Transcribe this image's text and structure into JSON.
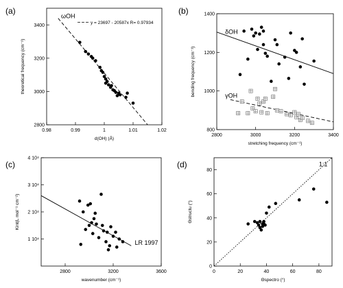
{
  "chart_data": [
    {
      "id": "a",
      "type": "scatter",
      "panel_label": "(a)",
      "xlabel": "d(OH) (Å)",
      "ylabel": "theoretical frequency (cm⁻¹)",
      "xlim": [
        0.98,
        1.02
      ],
      "ylim": [
        2800,
        3500
      ],
      "xticks": [
        0.98,
        0.99,
        1,
        1.01,
        1.02
      ],
      "xtick_labels": [
        "0.98",
        "0.99",
        "1",
        "1.01",
        "1.02"
      ],
      "yticks": [
        2800,
        3000,
        3200,
        3400
      ],
      "ytick_labels": [
        "2800",
        "3000",
        "3200",
        "3400"
      ],
      "annotation": "ωOH",
      "legend": "y = 23697 - 20587x   R= 0.97934",
      "fit_line": {
        "intercept": 23697,
        "slope": -20587,
        "style": "dashed",
        "x_range": [
          0.984,
          1.015
        ]
      },
      "points": [
        [
          0.9915,
          3295
        ],
        [
          0.9935,
          3240
        ],
        [
          0.9945,
          3225
        ],
        [
          0.9955,
          3210
        ],
        [
          0.996,
          3200
        ],
        [
          0.997,
          3185
        ],
        [
          0.9985,
          3145
        ],
        [
          0.999,
          3125
        ],
        [
          0.9995,
          3115
        ],
        [
          1.0,
          3090
        ],
        [
          1.0005,
          3075
        ],
        [
          1.001,
          3060
        ],
        [
          1.0015,
          3040
        ],
        [
          1.0022,
          3025
        ],
        [
          1.003,
          3010
        ],
        [
          1.0035,
          3005
        ],
        [
          1.004,
          2995
        ],
        [
          1.005,
          2990
        ],
        [
          1.0055,
          2980
        ],
        [
          1.0045,
          2975
        ],
        [
          1.0075,
          2965
        ],
        [
          1.008,
          2990
        ],
        [
          1.0025,
          3035
        ],
        [
          1.0005,
          3050
        ],
        [
          1.01,
          2930
        ]
      ]
    },
    {
      "id": "b",
      "type": "scatter",
      "panel_label": "(b)",
      "xlabel": "stretching frequency (cm⁻¹)",
      "ylabel": "bending frequency (cm⁻¹)",
      "xlim": [
        2800,
        3400
      ],
      "ylim": [
        800,
        1400
      ],
      "xticks": [
        2800,
        3000,
        3200,
        3400
      ],
      "xtick_labels": [
        "2800",
        "3000",
        "3200",
        "3400"
      ],
      "yticks": [
        800,
        1000,
        1200,
        1400
      ],
      "ytick_labels": [
        "800",
        "1000",
        "1200",
        "1400"
      ],
      "series": [
        {
          "name": "δOH",
          "marker": "filled-circle",
          "fit_line": {
            "p1": [
              2800,
              1305
            ],
            "p2": [
              3400,
              1090
            ],
            "style": "solid"
          },
          "points": [
            [
              2920,
              1085
            ],
            [
              2940,
              1310
            ],
            [
              2960,
              1165
            ],
            [
              2980,
              1320
            ],
            [
              2990,
              1285
            ],
            [
              3000,
              1300
            ],
            [
              3010,
              1215
            ],
            [
              3020,
              1295
            ],
            [
              3030,
              1330
            ],
            [
              3040,
              1240
            ],
            [
              3050,
              1195
            ],
            [
              3060,
              1180
            ],
            [
              3080,
              1050
            ],
            [
              3100,
              1265
            ],
            [
              3110,
              1240
            ],
            [
              3120,
              1140
            ],
            [
              3150,
              1175
            ],
            [
              3170,
              1065
            ],
            [
              3180,
              1300
            ],
            [
              3200,
              1210
            ],
            [
              3210,
              1200
            ],
            [
              3230,
              1125
            ],
            [
              3250,
              1035
            ],
            [
              3300,
              1155
            ],
            [
              3040,
              1310
            ],
            [
              3240,
              1270
            ]
          ]
        },
        {
          "name": "γOH",
          "marker": "boxed-cross",
          "fit_line": {
            "p1": [
              2870,
              955
            ],
            "p2": [
              3400,
              840
            ],
            "style": "dashed"
          },
          "points": [
            [
              2910,
              885
            ],
            [
              2930,
              945
            ],
            [
              2960,
              885
            ],
            [
              2975,
              1000
            ],
            [
              2985,
              910
            ],
            [
              3000,
              895
            ],
            [
              3010,
              960
            ],
            [
              3020,
              935
            ],
            [
              3030,
              890
            ],
            [
              3040,
              945
            ],
            [
              3050,
              960
            ],
            [
              3060,
              885
            ],
            [
              3090,
              970
            ],
            [
              3100,
              1010
            ],
            [
              3110,
              900
            ],
            [
              3130,
              895
            ],
            [
              3160,
              880
            ],
            [
              3180,
              875
            ],
            [
              3200,
              890
            ],
            [
              3210,
              865
            ],
            [
              3220,
              880
            ],
            [
              3230,
              850
            ],
            [
              3240,
              860
            ],
            [
              3270,
              845
            ],
            [
              3290,
              835
            ]
          ]
        }
      ]
    },
    {
      "id": "c",
      "type": "scatter",
      "panel_label": "(c)",
      "xlabel": "wavenumber (cm⁻¹)",
      "ylabel": "Kint(L mol⁻¹ cm⁻²)",
      "xlim": [
        2600,
        3600
      ],
      "ylim": [
        0,
        40000
      ],
      "xticks": [
        2800,
        3200,
        3600
      ],
      "xtick_labels": [
        "2800",
        "3200",
        "3600"
      ],
      "yticks": [
        10000,
        20000,
        30000,
        40000
      ],
      "ytick_labels": [
        "1 10⁴",
        "2 10⁴",
        "3 10⁴",
        "4 10⁴"
      ],
      "annotation": "LR 1997",
      "fit_line": {
        "p1": [
          2600,
          26000
        ],
        "p2": [
          3350,
          7500
        ],
        "style": "solid"
      },
      "points": [
        [
          2920,
          24000
        ],
        [
          2930,
          8000
        ],
        [
          2950,
          20000
        ],
        [
          2970,
          13500
        ],
        [
          2990,
          22500
        ],
        [
          3000,
          15000
        ],
        [
          3010,
          23000
        ],
        [
          3020,
          16000
        ],
        [
          3030,
          12000
        ],
        [
          3040,
          17500
        ],
        [
          3050,
          19500
        ],
        [
          3060,
          15500
        ],
        [
          3080,
          10500
        ],
        [
          3100,
          26500
        ],
        [
          3110,
          15000
        ],
        [
          3120,
          13000
        ],
        [
          3140,
          9000
        ],
        [
          3160,
          6000
        ],
        [
          3170,
          7500
        ],
        [
          3180,
          14500
        ],
        [
          3200,
          11000
        ],
        [
          3220,
          12500
        ],
        [
          3230,
          7000
        ],
        [
          3280,
          9000
        ],
        [
          3150,
          12500
        ],
        [
          3250,
          10000
        ]
      ]
    },
    {
      "id": "d",
      "type": "scatter",
      "panel_label": "(d)",
      "xlabel": "Θspectro (°)",
      "ylabel": "Θstructu (°)",
      "xlim": [
        0,
        90
      ],
      "ylim": [
        0,
        90
      ],
      "xticks": [
        0,
        20,
        40,
        60,
        80
      ],
      "xtick_labels": [
        "0",
        "20",
        "40",
        "60",
        "80"
      ],
      "yticks": [
        0,
        20,
        40,
        60,
        80
      ],
      "ytick_labels": [
        "0",
        "20",
        "40",
        "60",
        "80"
      ],
      "annotation": "1:1",
      "fit_line": {
        "p1": [
          0,
          0
        ],
        "p2": [
          90,
          90
        ],
        "style": "dotted"
      },
      "points": [
        [
          26,
          35
        ],
        [
          31,
          37
        ],
        [
          33,
          36
        ],
        [
          34,
          34
        ],
        [
          35,
          32
        ],
        [
          35,
          37
        ],
        [
          36,
          30
        ],
        [
          37,
          35
        ],
        [
          37,
          33
        ],
        [
          38,
          35
        ],
        [
          38,
          37
        ],
        [
          39,
          34
        ],
        [
          40,
          44
        ],
        [
          42,
          49
        ],
        [
          47,
          52
        ],
        [
          65,
          55
        ],
        [
          76,
          64
        ],
        [
          86,
          53
        ]
      ]
    }
  ]
}
